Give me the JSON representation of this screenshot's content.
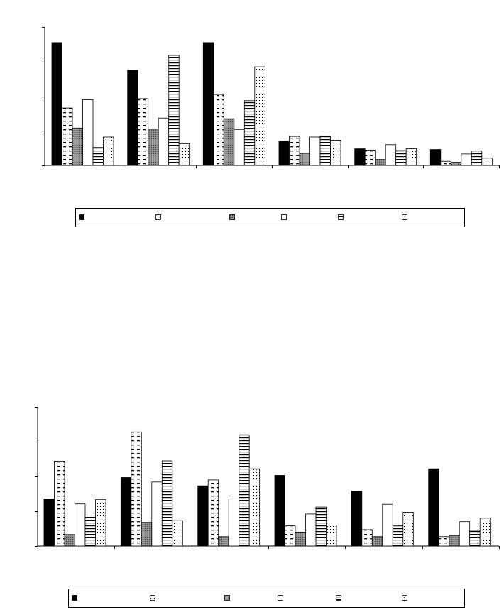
{
  "chart_data": [
    {
      "type": "bar",
      "title": "",
      "xlabel": "",
      "ylabel": "",
      "ylim": [
        0,
        4
      ],
      "grid": false,
      "legend_position": "bottom",
      "categories": [
        "",
        "",
        "",
        "",
        "",
        ""
      ],
      "series": [
        {
          "name": "",
          "pattern": "solid-black",
          "values": [
            3.55,
            2.75,
            3.55,
            0.7,
            0.48,
            0.46
          ]
        },
        {
          "name": "",
          "pattern": "dashes",
          "values": [
            1.66,
            1.93,
            2.05,
            0.84,
            0.44,
            0.12
          ]
        },
        {
          "name": "",
          "pattern": "gray-crosshatch",
          "values": [
            1.08,
            1.05,
            1.35,
            0.35,
            0.17,
            0.09
          ]
        },
        {
          "name": "",
          "pattern": "white",
          "values": [
            1.9,
            1.37,
            1.04,
            0.82,
            0.6,
            0.33
          ]
        },
        {
          "name": "",
          "pattern": "horizontal-lines",
          "values": [
            0.52,
            3.18,
            1.87,
            0.84,
            0.43,
            0.42
          ]
        },
        {
          "name": "",
          "pattern": "dots",
          "values": [
            0.82,
            0.63,
            2.85,
            0.73,
            0.48,
            0.21
          ]
        }
      ]
    },
    {
      "type": "bar",
      "title": "",
      "xlabel": "",
      "ylabel": "",
      "ylim": [
        0,
        4
      ],
      "grid": false,
      "legend_position": "bottom",
      "categories": [
        "",
        "",
        "",
        "",
        "",
        ""
      ],
      "series": [
        {
          "name": "",
          "pattern": "solid-black",
          "values": [
            1.35,
            1.97,
            1.73,
            2.03,
            1.58,
            2.22
          ]
        },
        {
          "name": "",
          "pattern": "dashes",
          "values": [
            2.44,
            3.28,
            1.9,
            0.58,
            0.47,
            0.27
          ]
        },
        {
          "name": "",
          "pattern": "gray-crosshatch",
          "values": [
            0.33,
            0.68,
            0.27,
            0.4,
            0.27,
            0.3
          ]
        },
        {
          "name": "",
          "pattern": "white",
          "values": [
            1.21,
            1.84,
            1.36,
            0.92,
            1.2,
            0.7
          ]
        },
        {
          "name": "",
          "pattern": "horizontal-lines",
          "values": [
            0.87,
            2.45,
            3.2,
            1.12,
            0.58,
            0.45
          ]
        },
        {
          "name": "",
          "pattern": "dots",
          "values": [
            1.34,
            0.73,
            2.22,
            0.6,
            0.97,
            0.8
          ]
        }
      ]
    }
  ]
}
